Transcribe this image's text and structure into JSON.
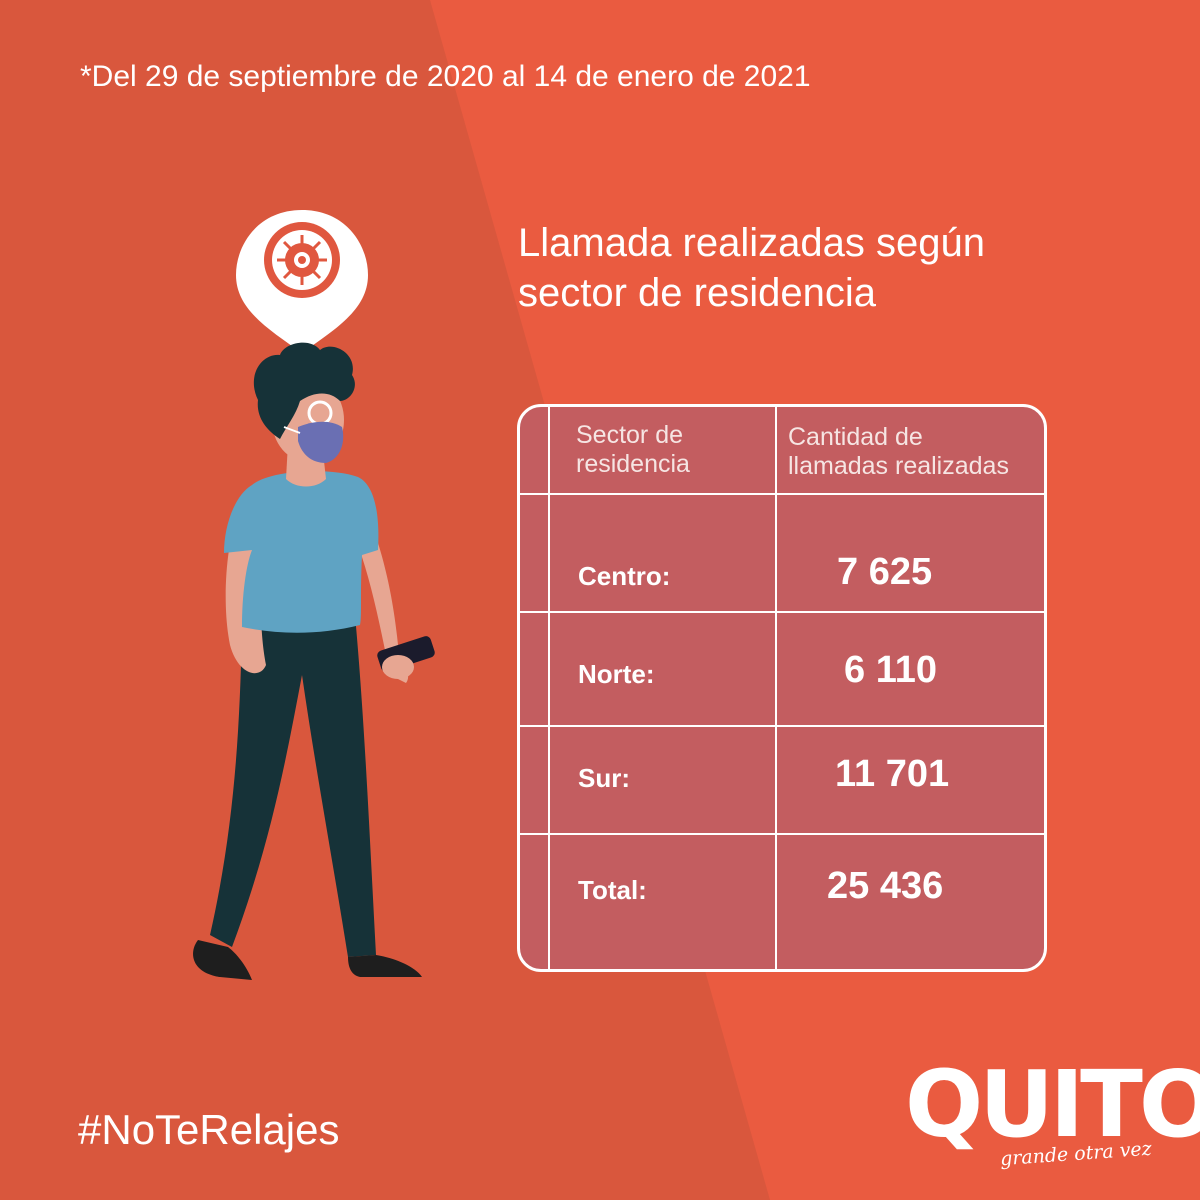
{
  "date_note": "*Del 29 de septiembre de 2020 al 14 de enero de 2021",
  "title": {
    "line1": "Llamada realizadas según",
    "line2": "sector de residencia"
  },
  "table": {
    "header": {
      "sector_line1": "Sector de",
      "sector_line2": "residencia",
      "count_line1": "Cantidad de",
      "count_line2": "llamadas realizadas"
    },
    "rows": [
      {
        "label": "Centro:",
        "value": "7 625"
      },
      {
        "label": "Norte:",
        "value": "6 110"
      },
      {
        "label": "Sur:",
        "value": "11 701"
      },
      {
        "label": "Total:",
        "value": "25 436"
      }
    ]
  },
  "hashtag": "#NoTeRelajes",
  "logo": {
    "word": "QUITO",
    "tagline": "grande otra vez"
  },
  "colors": {
    "background": "#ea5b40",
    "background_dark": "#d9573d",
    "table_fill": "#c35d60",
    "mask": "#6a6fb3",
    "shirt": "#5fa3c3",
    "pants": "#163238"
  },
  "icons": [
    "location-pin-virus-icon",
    "masked-person-illustration"
  ]
}
